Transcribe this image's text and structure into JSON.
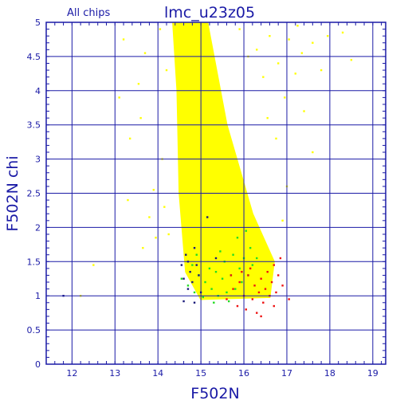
{
  "chart_data": {
    "type": "scatter",
    "title": "lmc_u23z05",
    "subtitle": "All chips",
    "xlabel": "F502N",
    "ylabel": "F502N chi",
    "xlim": [
      11.4,
      19.3
    ],
    "ylim": [
      0,
      5
    ],
    "x_ticks": [
      "12",
      "13",
      "14",
      "15",
      "16",
      "17",
      "18",
      "19"
    ],
    "y_ticks": [
      "0",
      "0.5",
      "1",
      "1.5",
      "2",
      "2.5",
      "3",
      "3.5",
      "4",
      "4.5",
      "5"
    ],
    "grid": true,
    "colors": {
      "axes": "#1a1aa6",
      "grid": "#1a1aa6",
      "bulk": "#ffff00",
      "green": "#22dd22",
      "red": "#ee1111",
      "navy": "#1a1a7a"
    },
    "bulk_envelope": {
      "description_points": [
        [
          14.35,
          5.0
        ],
        [
          15.15,
          5.0
        ],
        [
          15.6,
          3.5
        ],
        [
          16.2,
          2.2
        ],
        [
          16.7,
          1.5
        ],
        [
          16.6,
          0.98
        ],
        [
          15.0,
          0.95
        ],
        [
          14.65,
          1.35
        ],
        [
          14.5,
          2.5
        ],
        [
          14.45,
          4.0
        ]
      ]
    },
    "series": [
      {
        "color": "#ffff00",
        "points": [
          [
            12.2,
            1.0
          ],
          [
            12.5,
            1.45
          ],
          [
            13.1,
            3.9
          ],
          [
            13.2,
            4.75
          ],
          [
            13.3,
            2.4
          ],
          [
            13.35,
            3.3
          ],
          [
            13.55,
            4.1
          ],
          [
            13.6,
            3.6
          ],
          [
            13.7,
            4.55
          ],
          [
            13.65,
            1.7
          ],
          [
            13.8,
            2.15
          ],
          [
            13.9,
            2.55
          ],
          [
            13.95,
            1.85
          ],
          [
            14.05,
            4.9
          ],
          [
            14.1,
            3.0
          ],
          [
            14.15,
            2.3
          ],
          [
            14.2,
            4.3
          ],
          [
            14.25,
            1.9
          ],
          [
            16.3,
            4.6
          ],
          [
            16.45,
            4.2
          ],
          [
            16.6,
            4.8
          ],
          [
            16.8,
            4.4
          ],
          [
            16.95,
            3.9
          ],
          [
            17.05,
            4.75
          ],
          [
            17.2,
            4.25
          ],
          [
            17.35,
            4.55
          ],
          [
            17.6,
            4.7
          ],
          [
            17.8,
            4.3
          ],
          [
            17.95,
            4.8
          ],
          [
            18.3,
            4.85
          ],
          [
            18.5,
            4.45
          ],
          [
            16.75,
            3.3
          ],
          [
            17.0,
            2.6
          ],
          [
            17.4,
            3.7
          ],
          [
            16.9,
            2.1
          ],
          [
            17.6,
            3.1
          ],
          [
            15.9,
            4.9
          ],
          [
            16.1,
            4.5
          ],
          [
            16.55,
            3.6
          ],
          [
            17.25,
            4.95
          ]
        ]
      },
      {
        "color": "#22dd22",
        "points": [
          [
            14.55,
            1.25
          ],
          [
            14.7,
            1.15
          ],
          [
            14.8,
            1.45
          ],
          [
            14.85,
            1.05
          ],
          [
            14.95,
            1.3
          ],
          [
            15.05,
            0.98
          ],
          [
            15.1,
            1.2
          ],
          [
            15.2,
            1.4
          ],
          [
            15.25,
            1.1
          ],
          [
            15.35,
            1.35
          ],
          [
            15.4,
            1.0
          ],
          [
            15.5,
            1.25
          ],
          [
            15.55,
            1.5
          ],
          [
            15.6,
            1.05
          ],
          [
            15.7,
            1.3
          ],
          [
            15.75,
            1.6
          ],
          [
            15.8,
            1.1
          ],
          [
            15.85,
            1.85
          ],
          [
            15.9,
            1.4
          ],
          [
            15.95,
            1.2
          ],
          [
            16.0,
            1.55
          ],
          [
            16.05,
            1.95
          ],
          [
            16.1,
            1.3
          ],
          [
            16.15,
            1.7
          ],
          [
            16.2,
            1.45
          ],
          [
            15.3,
            0.9
          ],
          [
            15.65,
            0.92
          ],
          [
            14.9,
            1.6
          ],
          [
            15.45,
            1.65
          ],
          [
            16.3,
            1.55
          ]
        ]
      },
      {
        "color": "#ee1111",
        "points": [
          [
            15.6,
            0.95
          ],
          [
            15.75,
            1.1
          ],
          [
            15.85,
            0.85
          ],
          [
            15.9,
            1.2
          ],
          [
            16.0,
            1.0
          ],
          [
            16.05,
            0.8
          ],
          [
            16.1,
            1.3
          ],
          [
            16.2,
            0.95
          ],
          [
            16.25,
            1.15
          ],
          [
            16.3,
            0.75
          ],
          [
            16.35,
            1.05
          ],
          [
            16.4,
            1.25
          ],
          [
            16.45,
            0.9
          ],
          [
            16.5,
            1.1
          ],
          [
            16.55,
            1.35
          ],
          [
            16.6,
            1.0
          ],
          [
            16.65,
            1.2
          ],
          [
            16.7,
            1.45
          ],
          [
            16.75,
            1.05
          ],
          [
            16.8,
            1.3
          ],
          [
            16.9,
            1.15
          ],
          [
            17.05,
            0.95
          ],
          [
            16.15,
            1.4
          ],
          [
            15.95,
            1.35
          ],
          [
            16.7,
            0.85
          ],
          [
            16.4,
            0.7
          ],
          [
            16.85,
            1.55
          ],
          [
            15.7,
            1.3
          ]
        ]
      },
      {
        "color": "#1a1a7a",
        "points": [
          [
            11.8,
            1.0
          ],
          [
            14.55,
            1.45
          ],
          [
            14.6,
            1.25
          ],
          [
            14.65,
            1.6
          ],
          [
            14.7,
            1.1
          ],
          [
            14.75,
            1.35
          ],
          [
            14.8,
            1.2
          ],
          [
            14.85,
            0.9
          ],
          [
            14.9,
            1.45
          ],
          [
            14.95,
            1.3
          ],
          [
            15.0,
            1.05
          ],
          [
            15.15,
            2.15
          ],
          [
            15.35,
            1.55
          ],
          [
            14.6,
            0.92
          ],
          [
            14.7,
            1.5
          ],
          [
            14.85,
            1.7
          ]
        ]
      }
    ]
  }
}
